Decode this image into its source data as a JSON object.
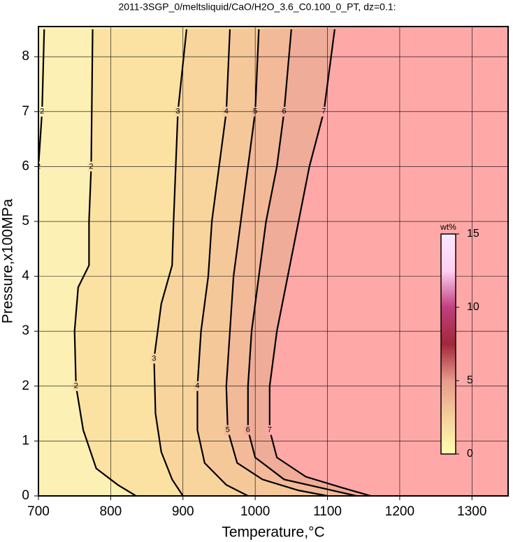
{
  "chart_data": {
    "type": "contour",
    "title": "2011-3SGP_0/meltsliquid/CaO/H2O_3.6_C0.100_0_PT, dz=0.1:",
    "x_label": "Temperature,°C",
    "y_label": "Pressure,x100MPa",
    "xlim": [
      700,
      1350
    ],
    "xticks": [
      700,
      800,
      900,
      1000,
      1100,
      1200,
      1300
    ],
    "ylim": [
      0,
      8.55
    ],
    "yticks": [
      0,
      1,
      2,
      3,
      4,
      5,
      6,
      7,
      8
    ],
    "grid": true,
    "background": "#fdf0b4",
    "contours": [
      {
        "level": 2,
        "x": [
          708,
          705,
          700
        ],
        "y": [
          8.5,
          7,
          6
        ]
      },
      {
        "level": 2,
        "color": "#fbe2a2",
        "x": [
          775,
          773,
          770,
          770,
          755,
          750,
          752,
          762,
          780,
          810,
          835
        ],
        "y": [
          8.5,
          6,
          5,
          4.2,
          3.8,
          3,
          2,
          1.2,
          0.5,
          0.2,
          0
        ]
      },
      {
        "level": 3,
        "color": "#f8d59d",
        "x": [
          905,
          893,
          890,
          887,
          885,
          870,
          860,
          862,
          870,
          885,
          900
        ],
        "y": [
          8.5,
          7,
          6,
          5,
          4.2,
          3.5,
          2.5,
          1.5,
          0.8,
          0.3,
          0
        ]
      },
      {
        "level": 4,
        "color": "#f5c89a",
        "x": [
          965,
          960,
          950,
          940,
          935,
          925,
          920,
          920,
          930,
          960,
          990
        ],
        "y": [
          8.5,
          7,
          6,
          5,
          4,
          3,
          2,
          1.2,
          0.6,
          0.2,
          0
        ]
      },
      {
        "level": 5,
        "color": "#f2ba99",
        "x": [
          1005,
          1000,
          990,
          980,
          970,
          965,
          960,
          962,
          975,
          1010,
          1060,
          1100
        ],
        "y": [
          8.5,
          7,
          6,
          5,
          4,
          3,
          2,
          1.2,
          0.6,
          0.3,
          0.1,
          0
        ]
      },
      {
        "level": 6,
        "color": "#efac98",
        "x": [
          1050,
          1040,
          1030,
          1015,
          1005,
          995,
          990,
          990,
          1000,
          1040,
          1100,
          1140
        ],
        "y": [
          8.5,
          7,
          6,
          5,
          4,
          3,
          2,
          1.2,
          0.7,
          0.3,
          0.12,
          0
        ]
      },
      {
        "level": 7,
        "color": "#ffa8a8",
        "x": [
          1110,
          1095,
          1075,
          1060,
          1045,
          1030,
          1020,
          1020,
          1030,
          1070,
          1120,
          1160
        ],
        "y": [
          8.5,
          7,
          6,
          5,
          4,
          3,
          2,
          1.2,
          0.7,
          0.35,
          0.15,
          0
        ]
      }
    ],
    "colorbar": {
      "label": "wt%",
      "lim": [
        0,
        15
      ],
      "ticks": [
        0,
        5,
        10,
        15
      ],
      "colors": [
        "#ffffb0",
        "#f5cf9c",
        "#e89a8c",
        "#a0283a",
        "#c04080",
        "#ffd0f0",
        "#f8e8ff"
      ]
    }
  }
}
